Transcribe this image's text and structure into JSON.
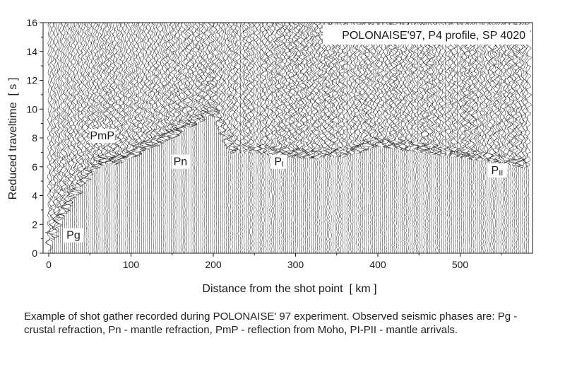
{
  "chart_data": {
    "type": "seismic record section",
    "title": "POLONAISE'97, P4 profile, SP 4020",
    "xlabel": "Distance from the shot point  [ km ]",
    "ylabel": "Reduced traveltime  [ s ]",
    "xlim": [
      -5,
      590
    ],
    "ylim": [
      0,
      16
    ],
    "x_ticks": [
      0,
      100,
      200,
      300,
      400,
      500
    ],
    "y_ticks": [
      0,
      2,
      4,
      6,
      8,
      10,
      12,
      14,
      16
    ],
    "grid": false,
    "trace_color": "#111111",
    "phases": [
      {
        "name": "Pg",
        "label": "Pg",
        "x": 30,
        "t": 1.0
      },
      {
        "name": "PmP",
        "label": "PmP",
        "x": 65,
        "t": 7.9
      },
      {
        "name": "Pn",
        "label": "Pn",
        "x": 160,
        "t": 6.1
      },
      {
        "name": "PI",
        "label": "P",
        "subscript": "I",
        "x": 280,
        "t": 6.1
      },
      {
        "name": "PII",
        "label": "P",
        "subscript": "II",
        "x": 545,
        "t": 5.5
      }
    ],
    "first_arrival_curve": {
      "x": [
        0,
        20,
        40,
        60,
        70,
        80,
        100,
        150,
        200,
        220,
        250,
        300,
        330,
        360,
        400,
        450,
        500,
        550,
        580
      ],
      "t": [
        0.5,
        3.0,
        5.0,
        6.3,
        6.5,
        6.45,
        6.9,
        8.3,
        10.0,
        7.2,
        7.2,
        6.9,
        6.9,
        7.0,
        7.7,
        7.3,
        6.9,
        6.5,
        6.2
      ]
    }
  },
  "caption": "Example of shot gather recorded during POLONAISE' 97 experiment. Observed seismic phases are: Pg - crustal refraction, Pn - mantle refraction, PmP - reflection from Moho, PI-PII - mantle arrivals."
}
